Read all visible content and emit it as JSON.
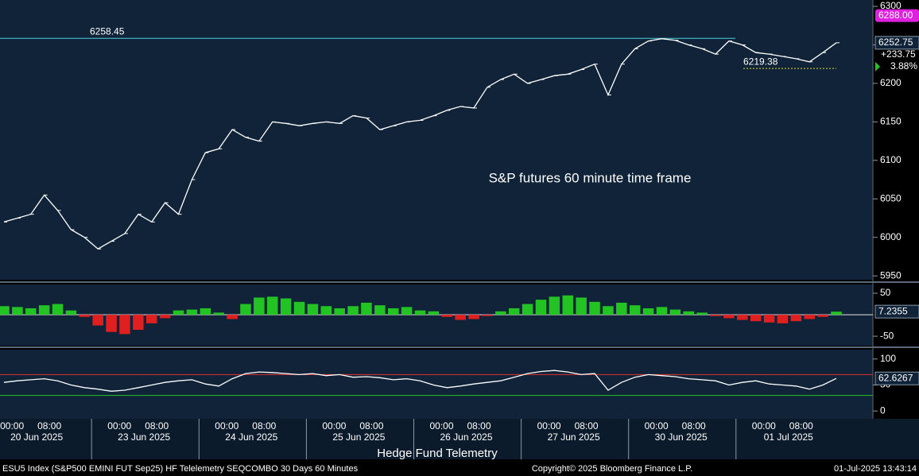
{
  "chart_data": [
    {
      "type": "line",
      "title": "S&P futures 60 minute time frame",
      "color": "#ffffff",
      "values": [
        6020,
        6025,
        6030,
        6055,
        6035,
        6010,
        6000,
        5985,
        5995,
        6005,
        6030,
        6020,
        6045,
        6030,
        6075,
        6110,
        6115,
        6140,
        6130,
        6125,
        6150,
        6148,
        6145,
        6148,
        6150,
        6148,
        6158,
        6155,
        6140,
        6145,
        6150,
        6152,
        6158,
        6165,
        6170,
        6168,
        6195,
        6205,
        6212,
        6200,
        6205,
        6210,
        6212,
        6218,
        6225,
        6185,
        6225,
        6245,
        6255,
        6258,
        6256,
        6250,
        6245,
        6238,
        6255,
        6250,
        6240,
        6238,
        6235,
        6232,
        6228,
        6240,
        6252.75
      ],
      "ylim": [
        5945,
        6308.3
      ],
      "yticks": [
        5950,
        6000,
        6050,
        6100,
        6150,
        6200,
        6250,
        6300
      ],
      "levels": [
        {
          "value": 6258.45,
          "label": "6258.45",
          "color": "#4dd0e1"
        },
        {
          "value": 6219.38,
          "label": "6219.38",
          "color": "#e6e600"
        }
      ],
      "tags": [
        {
          "value": 6288,
          "label": "6288.00",
          "color": "#e020e0"
        },
        {
          "value": 6252.75,
          "label": "6252.75",
          "color": "#ffffff"
        }
      ],
      "change": {
        "value": 233.75,
        "label": "+233.75"
      },
      "change_pct": {
        "value": 3.88,
        "label": "3.88%"
      }
    },
    {
      "type": "bar",
      "color": "#22c322",
      "negative_color": "#e02020",
      "values": [
        20,
        18,
        15,
        22,
        25,
        10,
        -5,
        -25,
        -40,
        -45,
        -35,
        -20,
        -8,
        10,
        12,
        15,
        5,
        -10,
        25,
        40,
        42,
        38,
        30,
        25,
        20,
        15,
        20,
        28,
        22,
        15,
        18,
        10,
        8,
        -5,
        -12,
        -10,
        -3,
        8,
        15,
        25,
        35,
        42,
        45,
        40,
        30,
        20,
        28,
        22,
        15,
        18,
        12,
        8,
        5,
        -3,
        -8,
        -12,
        -15,
        -18,
        -20,
        -15,
        -10,
        -5,
        7.2355
      ],
      "ylim": [
        -72,
        70.4
      ],
      "yticks": [
        -50,
        50
      ],
      "tags": [
        {
          "value": 7.2355,
          "label": "7.2355",
          "color": "#ffffff"
        }
      ]
    },
    {
      "type": "line",
      "color": "#ffffff",
      "values": [
        55,
        58,
        60,
        62,
        58,
        50,
        45,
        42,
        38,
        40,
        45,
        50,
        55,
        58,
        60,
        52,
        48,
        62,
        72,
        75,
        74,
        72,
        70,
        72,
        68,
        70,
        65,
        66,
        64,
        60,
        62,
        58,
        50,
        45,
        48,
        52,
        55,
        58,
        65,
        72,
        76,
        78,
        75,
        70,
        72,
        40,
        55,
        65,
        70,
        68,
        66,
        62,
        60,
        58,
        50,
        55,
        58,
        52,
        50,
        48,
        42,
        50,
        62.6267
      ],
      "ylim": [
        -15,
        118
      ],
      "yticks": [
        0,
        50,
        100
      ],
      "levels": [
        {
          "value": 70,
          "color": "#e03030"
        },
        {
          "value": 30,
          "color": "#22c322"
        }
      ],
      "tags": [
        {
          "value": 62.6267,
          "label": "62.6267",
          "color": "#ffffff"
        }
      ]
    }
  ],
  "x_axis": {
    "times": [
      "00:00",
      "08:00"
    ],
    "days": [
      "20 Jun 2025",
      "23 Jun 2025",
      "24 Jun 2025",
      "25 Jun 2025",
      "26 Jun 2025",
      "27 Jun 2025",
      "30 Jun 2025",
      "01 Jul 2025"
    ],
    "title": "Hedge Fund Telemetry"
  },
  "footer": {
    "security": "ESU5 Index (S&P500 EMINI FUT  Sep25) HF Telelemetry SEQCOMBO 30 Days 60 Minutes",
    "copyright": "Copyright© 2025 Bloomberg Finance L.P.",
    "timestamp": "01-Jul-2025 13:43:14"
  }
}
